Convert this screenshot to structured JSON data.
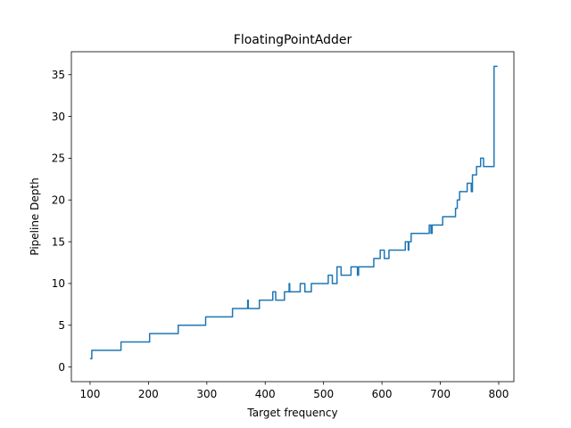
{
  "chart_data": {
    "type": "line",
    "title": "FloatingPointAdder",
    "xlabel": "Target frequency",
    "ylabel": "Pipeline Depth",
    "xlim": [
      68,
      826
    ],
    "ylim": [
      -1.75,
      37.75
    ],
    "x_ticks": [
      100,
      200,
      300,
      400,
      500,
      600,
      700,
      800
    ],
    "y_ticks": [
      0,
      5,
      10,
      15,
      20,
      25,
      30,
      35
    ],
    "grid": false,
    "legend": "none",
    "series": [
      {
        "color": "#1f77b4",
        "x": [
          100,
          101,
          101,
          103,
          103,
          153,
          153,
          202,
          202,
          251,
          251,
          298,
          298,
          344,
          344,
          370,
          370,
          371,
          371,
          390,
          390,
          413,
          413,
          418,
          418,
          433,
          433,
          441,
          441,
          442,
          442,
          443,
          443,
          460,
          460,
          468,
          468,
          479,
          479,
          506,
          506,
          508,
          508,
          515,
          515,
          523,
          523,
          530,
          530,
          547,
          547,
          558,
          558,
          560,
          560,
          562,
          562,
          586,
          586,
          597,
          597,
          604,
          604,
          612,
          612,
          624,
          624,
          640,
          640,
          645,
          645,
          646,
          646,
          648,
          648,
          650,
          650,
          660,
          660,
          681,
          681,
          684,
          684,
          686,
          686,
          689,
          689,
          704,
          704,
          726,
          726,
          729,
          729,
          733,
          733,
          735,
          735,
          746,
          746,
          753,
          753,
          755,
          755,
          760,
          760,
          762,
          762,
          769,
          769,
          774,
          774,
          776,
          776,
          777,
          777,
          779,
          779,
          792,
          792,
          798
        ],
        "y": [
          1,
          1,
          1,
          1,
          2,
          2,
          3,
          3,
          4,
          4,
          5,
          5,
          6,
          6,
          7,
          7,
          8,
          8,
          7,
          7,
          8,
          8,
          9,
          9,
          8,
          8,
          9,
          9,
          10,
          10,
          9,
          9,
          9,
          9,
          10,
          10,
          9,
          9,
          10,
          10,
          10,
          10,
          11,
          11,
          10,
          10,
          12,
          12,
          11,
          11,
          12,
          12,
          11,
          11,
          12,
          12,
          12,
          12,
          13,
          13,
          14,
          14,
          13,
          13,
          14,
          14,
          14,
          14,
          15,
          15,
          14,
          14,
          15,
          15,
          15,
          15,
          16,
          16,
          16,
          16,
          17,
          17,
          16,
          16,
          17,
          17,
          17,
          17,
          18,
          18,
          19,
          19,
          20,
          20,
          21,
          21,
          21,
          21,
          22,
          22,
          21,
          21,
          23,
          23,
          23,
          23,
          24,
          24,
          25,
          25,
          24,
          24,
          24,
          24,
          24,
          24,
          24,
          24,
          36,
          36
        ]
      }
    ]
  }
}
